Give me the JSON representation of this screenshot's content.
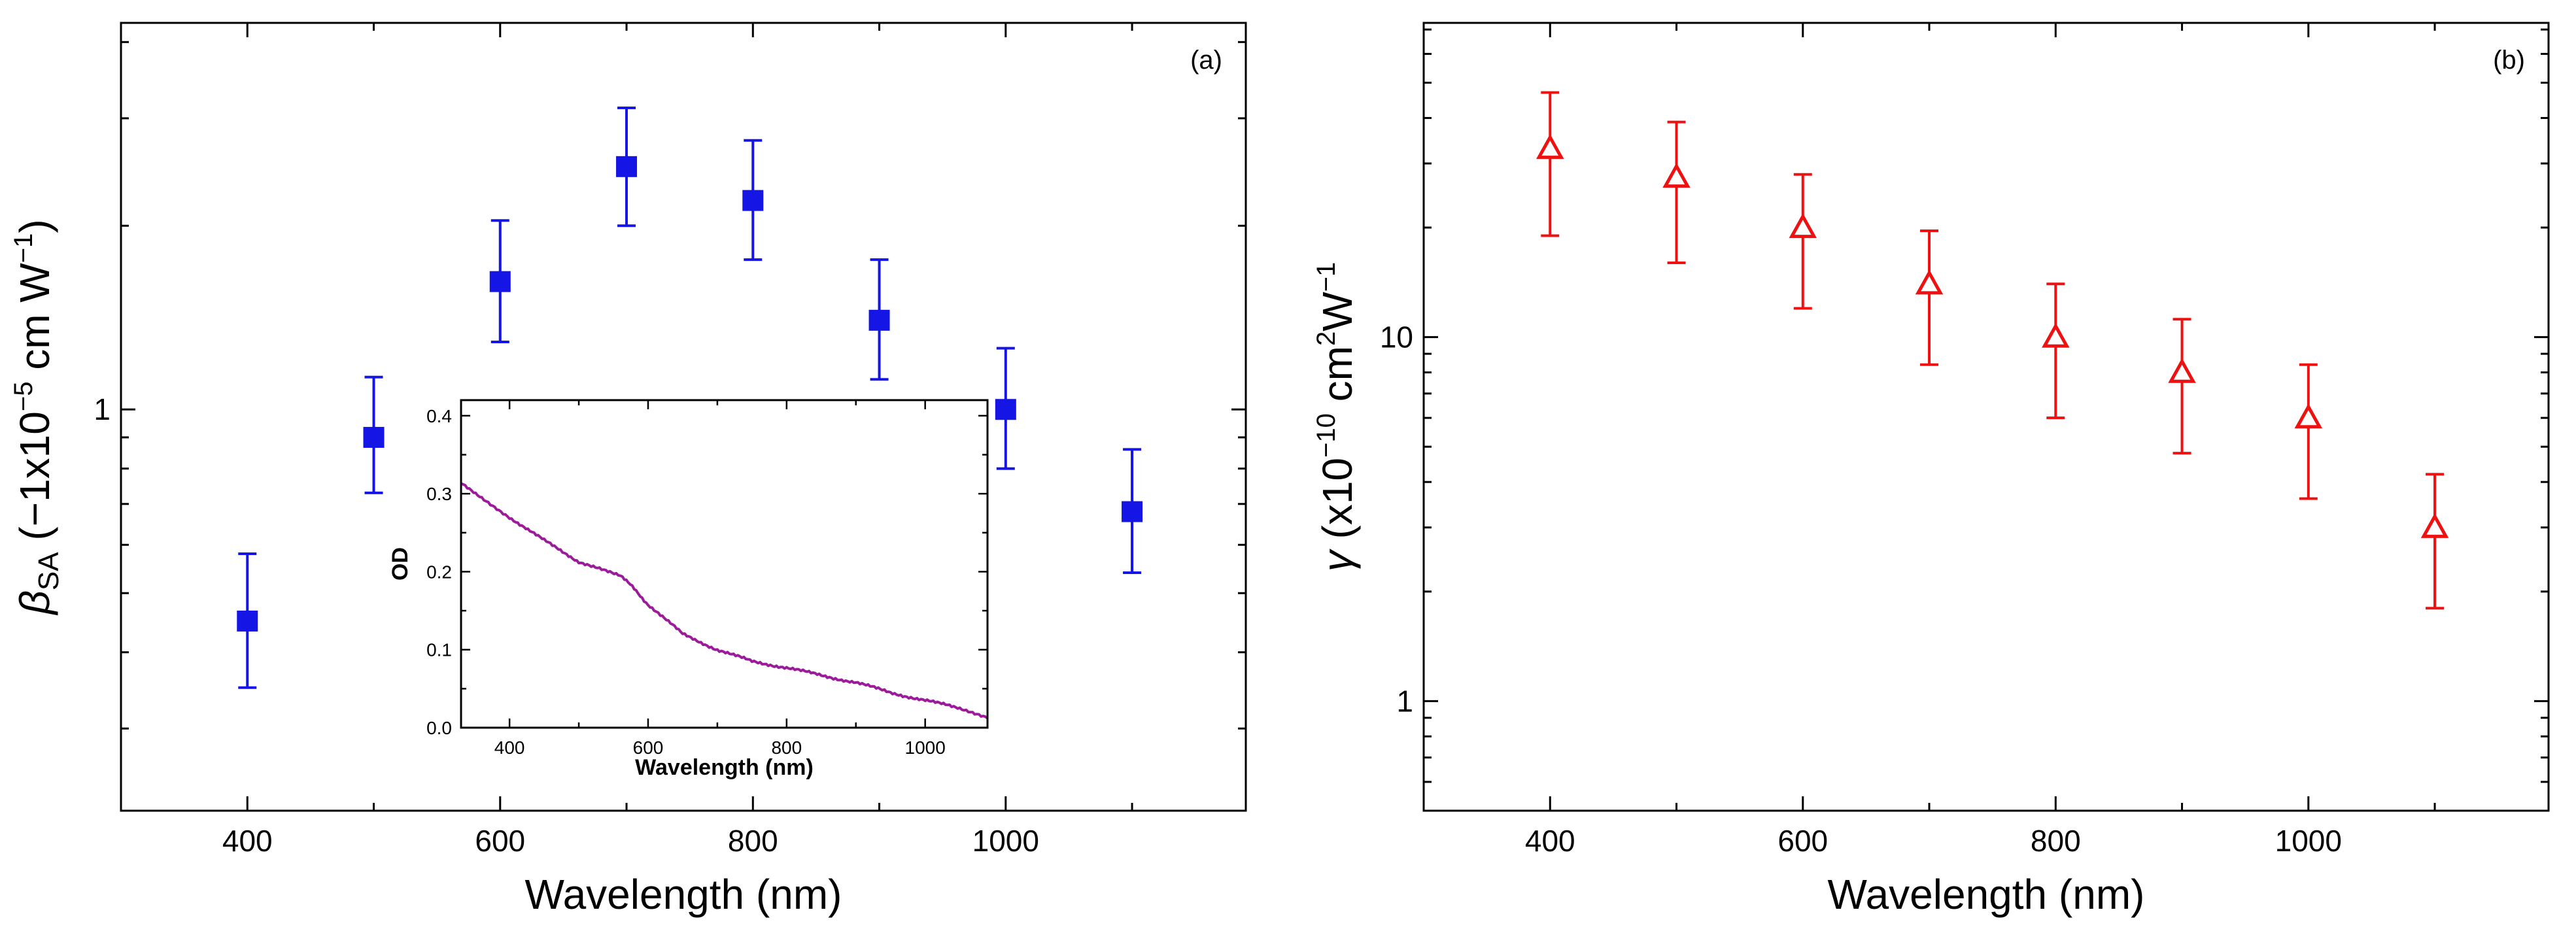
{
  "chart_data": [
    {
      "type": "scatter",
      "panel_label": "(a)",
      "title": "",
      "xlabel": "Wavelength (nm)",
      "ylabel": "βSA (−1x10−5 cm W−1)",
      "ylabel_parts": {
        "symbol": "β",
        "subscript": "SA",
        "pre": " (−1x10",
        "exponent1": "−5",
        "mid": " cm W",
        "exponent2": "−1",
        "post": ")"
      },
      "xscale": "linear",
      "yscale": "log",
      "xlim": [
        300,
        1190
      ],
      "ylim": [
        0.22,
        4.3
      ],
      "xticks": [
        400,
        600,
        800,
        1000
      ],
      "xtick_labels": [
        "400",
        "600",
        "800",
        "1000"
      ],
      "yticks": [
        1
      ],
      "ytick_labels": [
        "1"
      ],
      "marker": "filled-square",
      "color": "#1515e6",
      "x": [
        400,
        500,
        600,
        700,
        800,
        900,
        1000,
        1100
      ],
      "y": [
        0.45,
        0.9,
        1.62,
        2.5,
        2.2,
        1.4,
        1.0,
        0.68
      ],
      "err_low": [
        0.1,
        0.17,
        0.33,
        0.5,
        0.44,
        0.28,
        0.2,
        0.14
      ],
      "err_high": [
        0.13,
        0.23,
        0.42,
        0.62,
        0.56,
        0.36,
        0.26,
        0.18
      ],
      "inset": {
        "type": "line",
        "xlabel": "Wavelength (nm)",
        "ylabel": "OD",
        "xlim": [
          330,
          1090
        ],
        "ylim": [
          0.0,
          0.42
        ],
        "xticks": [
          400,
          600,
          800,
          1000
        ],
        "xtick_labels": [
          "400",
          "600",
          "800",
          "1000"
        ],
        "yticks": [
          0.0,
          0.1,
          0.2,
          0.3,
          0.4
        ],
        "ytick_labels": [
          "0.0",
          "0.1",
          "0.2",
          "0.3",
          "0.4"
        ],
        "color": "#9b1b9b",
        "x": [
          330,
          360,
          400,
          450,
          500,
          530,
          560,
          580,
          600,
          650,
          700,
          750,
          800,
          850,
          900,
          950,
          1000,
          1050,
          1090
        ],
        "y": [
          0.315,
          0.295,
          0.27,
          0.24,
          0.213,
          0.205,
          0.195,
          0.178,
          0.158,
          0.12,
          0.1,
          0.085,
          0.077,
          0.067,
          0.058,
          0.045,
          0.035,
          0.025,
          0.012
        ]
      }
    },
    {
      "type": "scatter",
      "panel_label": "(b)",
      "title": "",
      "xlabel": "Wavelength (nm)",
      "ylabel": "γ (x10−10 cm2W−1)",
      "ylabel_parts": {
        "symbol": "γ",
        "pre": " (x10",
        "exponent1": "−10",
        "mid": " cm",
        "exponent2": "2",
        "mid2": "W",
        "exponent3": "−1",
        "post": ""
      },
      "xscale": "linear",
      "yscale": "log",
      "xlim": [
        300,
        1190
      ],
      "ylim": [
        0.5,
        73
      ],
      "xticks": [
        400,
        600,
        800,
        1000
      ],
      "xtick_labels": [
        "400",
        "600",
        "800",
        "1000"
      ],
      "yticks": [
        1,
        10
      ],
      "ytick_labels": [
        "1",
        "10"
      ],
      "marker": "open-triangle",
      "color": "#ee1111",
      "x": [
        400,
        500,
        600,
        700,
        800,
        900,
        1000,
        1100
      ],
      "y": [
        33,
        27.5,
        20,
        14,
        10,
        8,
        6,
        3
      ],
      "err_low": [
        14,
        11.5,
        8,
        5.6,
        4,
        3.2,
        2.4,
        1.2
      ],
      "err_high": [
        14,
        11.5,
        8,
        5.6,
        4,
        3.2,
        2.4,
        1.2
      ]
    }
  ]
}
